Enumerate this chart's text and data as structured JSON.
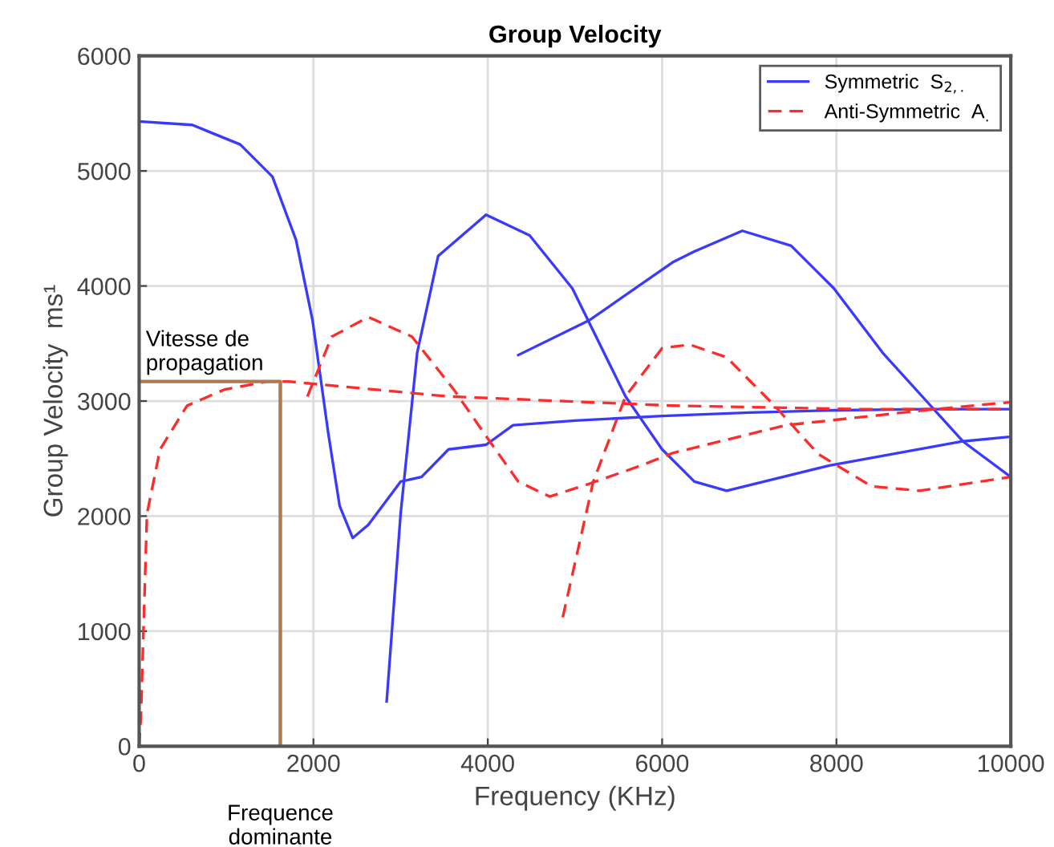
{
  "chart_data": {
    "type": "line",
    "title": "Group Velocity",
    "xlabel": "Frequency (KHz)",
    "ylabel": "Group Velocity  ms¹",
    "xlim": [
      0,
      10000
    ],
    "xticks": [
      0,
      2000,
      4000,
      6000,
      8000,
      10000
    ],
    "ylim": [
      0,
      6000
    ],
    "yticks": [
      0,
      1000,
      2000,
      3000,
      4000,
      5000,
      6000
    ],
    "grid": true,
    "legend": "top right",
    "series": [
      {
        "name": "Symmetric  S$_{2,.}$",
        "color": "#3a3aff",
        "line_style": "solid",
        "x": [
          0,
          610,
          1160,
          1530,
          1800,
          1990,
          2170,
          2300,
          2450,
          2630,
          3000,
          3240,
          3550,
          3980,
          4290,
          5000,
          6000,
          7000,
          8000,
          9000,
          10000
        ],
        "values": [
          5430,
          5400,
          5230,
          4950,
          4400,
          3700,
          2720,
          2090,
          1810,
          1925,
          2300,
          2340,
          2580,
          2620,
          2790,
          2830,
          2870,
          2900,
          2920,
          2930,
          2930
        ]
      },
      {
        "color": "#3a3aff",
        "line_style": "solid",
        "x": [
          2840,
          3000,
          3190,
          3430,
          3980,
          4480,
          4970,
          5580,
          6000,
          6370,
          6740,
          7920,
          9450,
          10000
        ],
        "values": [
          390,
          2020,
          3420,
          4260,
          4620,
          4440,
          3980,
          3040,
          2580,
          2300,
          2220,
          2440,
          2650,
          2690
        ]
      },
      {
        "color": "#3a3aff",
        "line_style": "solid",
        "x": [
          4350,
          5160,
          6130,
          6370,
          6920,
          7480,
          7970,
          8530,
          9080,
          9450,
          10000
        ],
        "values": [
          3400,
          3700,
          4210,
          4300,
          4480,
          4350,
          3980,
          3420,
          2960,
          2650,
          2340
        ]
      },
      {
        "name": "Anti-Symmetric  A$_{.}$",
        "color": "#ff2a2a",
        "line_style": "dashed",
        "x": [
          0,
          20,
          90,
          240,
          550,
          980,
          1470,
          1710,
          3550,
          6130,
          8210,
          10000
        ],
        "values": [
          0,
          250,
          2020,
          2580,
          2960,
          3100,
          3170,
          3170,
          3040,
          2960,
          2930,
          2930
        ]
      },
      {
        "color": "#ff2a2a",
        "line_style": "dashed",
        "x": [
          1930,
          2210,
          2630,
          3130,
          3610,
          4050,
          4350,
          4710,
          5160,
          5760,
          6130,
          7420,
          9130,
          10000
        ],
        "values": [
          3040,
          3560,
          3730,
          3560,
          3100,
          2620,
          2300,
          2170,
          2280,
          2440,
          2550,
          2790,
          2930,
          2990
        ]
      },
      {
        "color": "#ff2a2a",
        "line_style": "dashed",
        "x": [
          4860,
          5210,
          5580,
          6000,
          6320,
          6740,
          7290,
          7790,
          8400,
          8950,
          10000
        ],
        "values": [
          1120,
          2300,
          3040,
          3460,
          3490,
          3380,
          2960,
          2540,
          2260,
          2220,
          2340
        ]
      },
      {
        "color": "#b07850",
        "line_style": "solid",
        "x": [
          0,
          1620,
          1620
        ],
        "values": [
          3170,
          3170,
          0
        ]
      }
    ],
    "annotations": [
      {
        "text": "Vitesse de\npropagation",
        "x": 0,
        "y": 3170
      },
      {
        "text": "Frequence\ndominante",
        "x": 1620,
        "y": 0
      }
    ]
  }
}
